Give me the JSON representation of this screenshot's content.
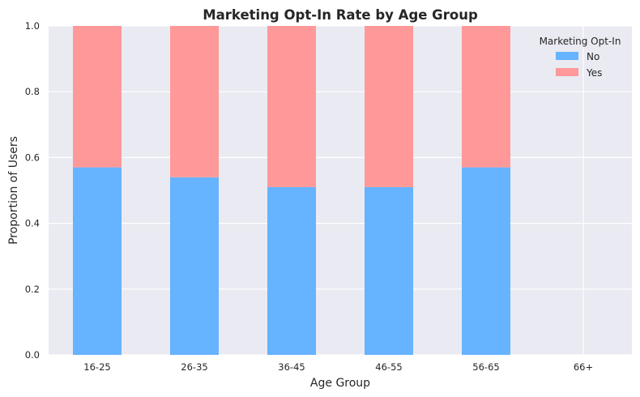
{
  "chart_data": {
    "type": "bar",
    "stacked": true,
    "title": "Marketing Opt-In Rate by Age Group",
    "xlabel": "Age Group",
    "ylabel": "Proportion of Users",
    "categories": [
      "16-25",
      "26-35",
      "36-45",
      "46-55",
      "56-65",
      "66+"
    ],
    "series": [
      {
        "name": "No",
        "color": "#66b3ff",
        "values": [
          0.57,
          0.54,
          0.51,
          0.51,
          0.57,
          0
        ]
      },
      {
        "name": "Yes",
        "color": "#ff9999",
        "values": [
          0.43,
          0.46,
          0.49,
          0.49,
          0.43,
          0
        ]
      }
    ],
    "ylim": [
      0,
      1.0
    ],
    "yticks": [
      "0.0",
      "0.2",
      "0.4",
      "0.6",
      "0.8",
      "1.0"
    ],
    "ytick_values": [
      0,
      0.2,
      0.4,
      0.6,
      0.8,
      1.0
    ],
    "legend": {
      "title": "Marketing Opt-In",
      "placement": "top-right"
    },
    "grid": true,
    "background": "#eaeaf2",
    "grid_color": "#ffffff"
  }
}
